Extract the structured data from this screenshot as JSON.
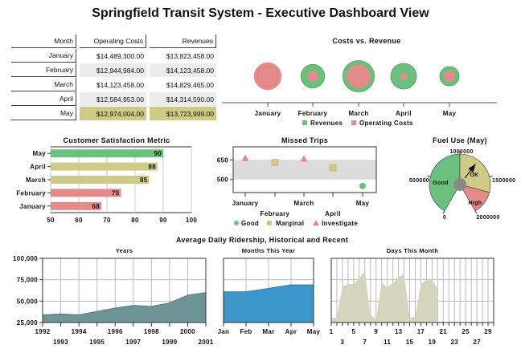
{
  "page": {
    "title": "Springfield Transit System - Executive Dashboard View"
  },
  "colors": {
    "good": "#6cc07e",
    "marginal": "#cfcb86",
    "investigate": "#e38a8a",
    "ridership_years": "#6f9498",
    "ridership_months": "#3b97c9",
    "ridership_days": "#d3d5bd",
    "gauge_hub": "#888888"
  },
  "table": {
    "headers": [
      "Month",
      "Operating Costs",
      "Revenues"
    ],
    "rows": [
      {
        "month": "January",
        "costs": "$14,489,300.00",
        "revenues": "$13,823,458.00"
      },
      {
        "month": "February",
        "costs": "$12,944,984.00",
        "revenues": "$14,123,458.00"
      },
      {
        "month": "March",
        "costs": "$14,123,458.00",
        "revenues": "$14,829,465.00"
      },
      {
        "month": "April",
        "costs": "$12,584,953.00",
        "revenues": "$14,314,590.00"
      },
      {
        "month": "May",
        "costs": "$12,974,004.00",
        "revenues": "$13,723,999.00"
      }
    ]
  },
  "chart_data": [
    {
      "id": "costs-vs-revenue",
      "type": "scatter",
      "title": "Costs vs. Revenue",
      "categories": [
        "January",
        "February",
        "March",
        "April",
        "May"
      ],
      "series": [
        {
          "name": "Revenues",
          "values": [
            13823458,
            14123458,
            14829465,
            14314590,
            13723999
          ]
        },
        {
          "name": "Operating Costs",
          "values": [
            14489300,
            12944984,
            14123458,
            12584953,
            12974004
          ]
        }
      ],
      "legend": "bottom"
    },
    {
      "id": "customer-satisfaction",
      "type": "bar",
      "orientation": "horizontal",
      "title": "Customer Satisfaction Metric",
      "categories": [
        "May",
        "April",
        "March",
        "February",
        "January"
      ],
      "values": [
        90,
        88,
        85,
        75,
        68
      ],
      "status": [
        "good",
        "marginal",
        "marginal",
        "investigate",
        "investigate"
      ],
      "xlim": [
        50,
        100
      ],
      "xticks": [
        "50",
        "60",
        "70",
        "80",
        "90",
        "100"
      ],
      "grid": true
    },
    {
      "id": "missed-trips",
      "type": "scatter",
      "title": "Missed Trips",
      "categories": [
        "January",
        "February",
        "March",
        "April",
        "May"
      ],
      "values": [
        660,
        630,
        655,
        590,
        450
      ],
      "status": [
        "investigate",
        "marginal",
        "investigate",
        "marginal",
        "good"
      ],
      "band": [
        500,
        650
      ],
      "ylim": [
        400,
        750
      ],
      "yticks": [
        "650",
        "500"
      ],
      "legend": [
        "Good",
        "Marginal",
        "Investigate"
      ],
      "legend_position": "bottom"
    },
    {
      "id": "fuel-use",
      "type": "gauge",
      "title": "Fuel Use (May)",
      "range": [
        0,
        2000000
      ],
      "ticks": [
        "0",
        "500000",
        "1000000",
        "1500000",
        "2000000"
      ],
      "bands": [
        {
          "label": "Good",
          "from": 0,
          "to": 1000000,
          "status": "good"
        },
        {
          "label": "OK",
          "from": 1000000,
          "to": 1700000,
          "status": "marginal"
        },
        {
          "label": "High",
          "from": 1700000,
          "to": 2000000,
          "status": "investigate"
        }
      ],
      "value": 1250000
    },
    {
      "id": "ridership-years",
      "type": "area",
      "group_title": "Average Daily Ridership, Historical and Recent",
      "title": "Years",
      "x": [
        "1992",
        "1993",
        "1994",
        "1995",
        "1996",
        "1997",
        "1998",
        "1999",
        "2000",
        "2001"
      ],
      "values": [
        34000,
        35000,
        34000,
        38000,
        42000,
        45000,
        44000,
        48000,
        57000,
        60000
      ],
      "ylim": [
        25000,
        100000
      ],
      "yticks": [
        "25,000",
        "50,000",
        "75,000",
        "100,000"
      ],
      "grid": true
    },
    {
      "id": "ridership-months",
      "type": "area",
      "title": "Months This Year",
      "x": [
        "Jan",
        "Feb",
        "Mar",
        "Apr",
        "May"
      ],
      "values": [
        61000,
        61000,
        65000,
        69000,
        69000
      ],
      "ylim": [
        25000,
        100000
      ],
      "grid": true
    },
    {
      "id": "ridership-days",
      "type": "area",
      "title": "Days This Month",
      "x": [
        "1",
        "2",
        "3",
        "4",
        "5",
        "6",
        "7",
        "8",
        "9",
        "10",
        "11",
        "12",
        "13",
        "14",
        "15",
        "16",
        "17",
        "18",
        "19",
        "20"
      ],
      "values": [
        30000,
        31000,
        67000,
        70000,
        70000,
        77000,
        85000,
        34000,
        29000,
        72000,
        66000,
        71000,
        78000,
        82000,
        30000,
        32000,
        70000,
        75000,
        75000,
        65000
      ],
      "xticks_top": [
        "1",
        "5",
        "9",
        "13",
        "17",
        "21",
        "25",
        "29"
      ],
      "xticks_bottom": [
        "3",
        "7",
        "11",
        "15",
        "19",
        "23",
        "27"
      ],
      "xlim": [
        1,
        30
      ],
      "ylim": [
        25000,
        100000
      ],
      "grid": true
    }
  ]
}
